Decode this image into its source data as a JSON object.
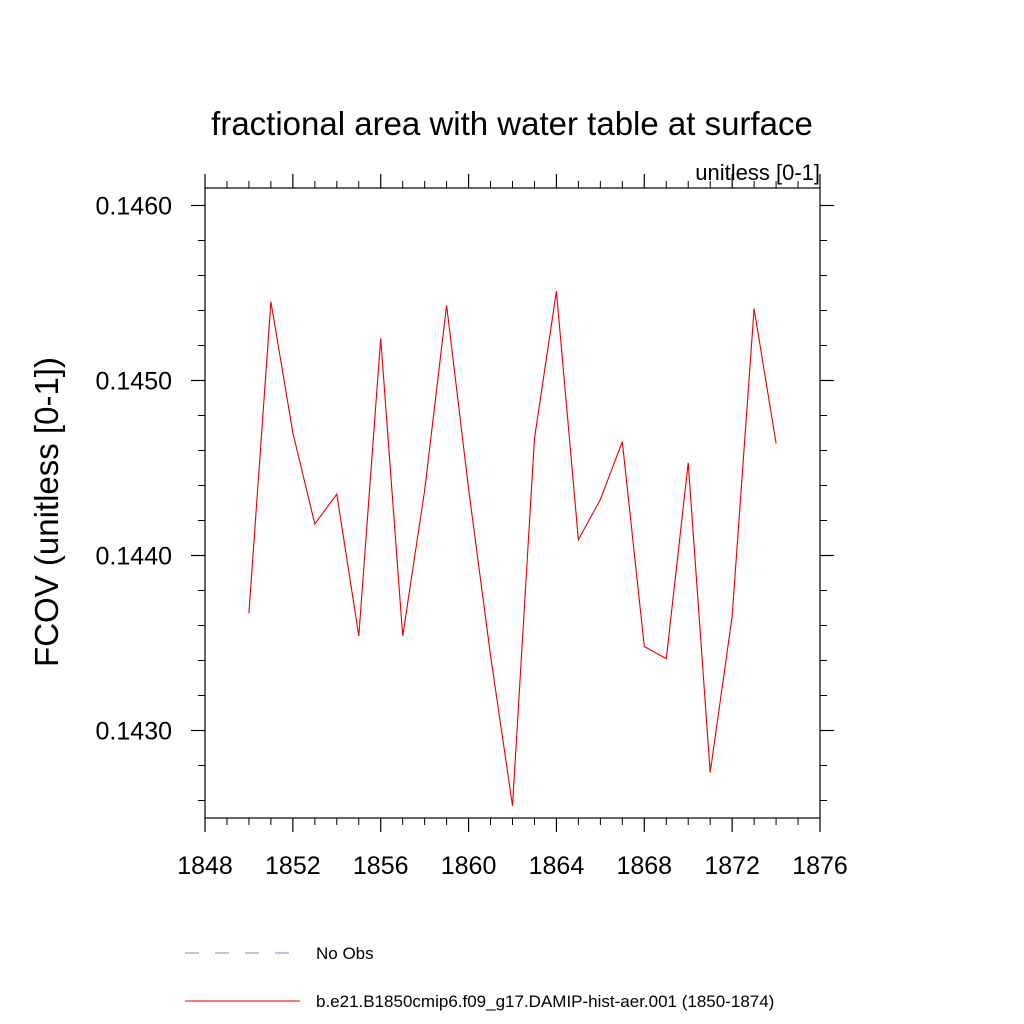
{
  "chart_data": {
    "type": "line",
    "title": "fractional area with water table at surface",
    "subtitle": "unitless [0-1]",
    "ylabel": "FCOV  (unitless [0-1])",
    "xlabel": "",
    "xlim": [
      1848,
      1876
    ],
    "ylim": [
      0.1425,
      0.1461
    ],
    "x_ticks": [
      1848,
      1852,
      1856,
      1860,
      1864,
      1868,
      1872,
      1876
    ],
    "x_tick_labels": [
      "1848",
      "1852",
      "1856",
      "1860",
      "1864",
      "1868",
      "1872",
      "1876"
    ],
    "y_ticks": [
      0.143,
      0.144,
      0.145,
      0.146
    ],
    "y_tick_labels": [
      "0.1430",
      "0.1440",
      "0.1450",
      "0.1460"
    ],
    "grid": false,
    "legend_position": "bottom",
    "series": [
      {
        "name": "No Obs",
        "color": "#8080c0",
        "dash": "dashed",
        "x": [],
        "y": []
      },
      {
        "name": "b.e21.B1850cmip6.f09_g17.DAMIP-hist-aer.001 (1850-1874)",
        "color": "#e00000",
        "dash": "solid",
        "x": [
          1850,
          1851,
          1852,
          1853,
          1854,
          1855,
          1856,
          1857,
          1858,
          1859,
          1860,
          1861,
          1862,
          1863,
          1864,
          1865,
          1866,
          1867,
          1868,
          1869,
          1870,
          1871,
          1872,
          1873,
          1874
        ],
        "y": [
          0.14367,
          0.14545,
          0.1447,
          0.14418,
          0.14435,
          0.14354,
          0.14524,
          0.14354,
          0.14437,
          0.14543,
          0.14438,
          0.14343,
          0.14257,
          0.14467,
          0.14551,
          0.14409,
          0.14432,
          0.14465,
          0.14348,
          0.14341,
          0.14453,
          0.14276,
          0.14365,
          0.14541,
          0.14464
        ]
      }
    ]
  }
}
